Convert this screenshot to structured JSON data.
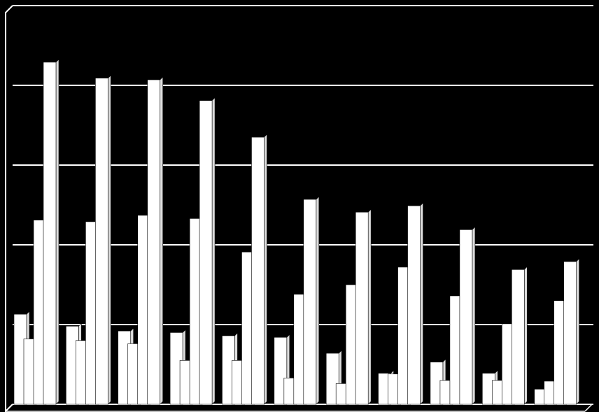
{
  "chart_data": {
    "type": "bar",
    "categories": [
      null,
      null,
      null,
      null,
      null,
      null,
      null,
      null,
      null,
      null,
      null
    ],
    "series": [
      {
        "color": "#ffffff",
        "values": [
          1.13,
          0.98,
          0.92,
          0.9,
          0.86,
          0.84,
          0.64,
          0.39,
          0.53,
          0.39,
          0.19
        ]
      },
      {
        "color": "#ffffff",
        "values": [
          0.82,
          0.8,
          0.76,
          0.55,
          0.55,
          0.33,
          0.26,
          0.38,
          0.3,
          0.3,
          0.29
        ]
      },
      {
        "color": "#ffffff",
        "values": [
          2.31,
          2.29,
          2.37,
          2.33,
          1.91,
          1.38,
          1.5,
          1.72,
          1.36,
          1.01,
          1.3
        ]
      },
      {
        "color": "#ffffff",
        "values": [
          4.29,
          4.09,
          4.07,
          3.81,
          3.35,
          2.57,
          2.41,
          2.49,
          2.19,
          1.69,
          1.79
        ]
      }
    ],
    "ylim": [
      0,
      5
    ],
    "yticks": [
      0,
      1,
      2,
      3,
      4,
      5
    ],
    "grid": true
  }
}
